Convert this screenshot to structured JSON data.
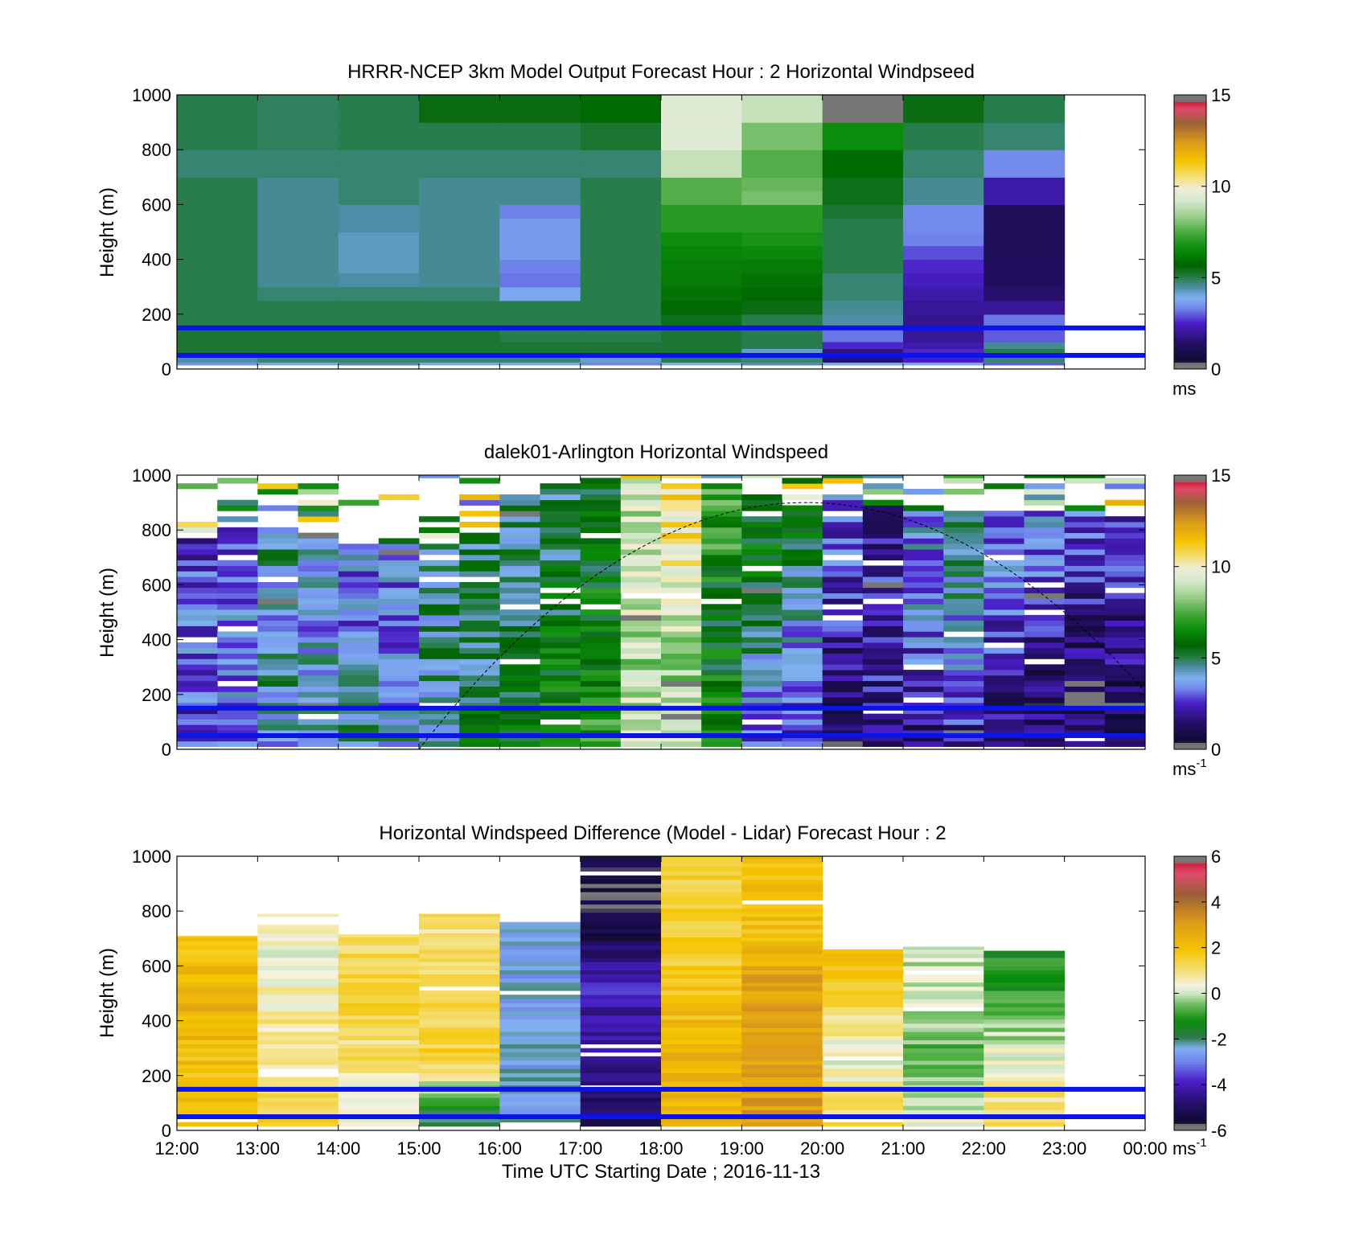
{
  "x_axis": {
    "ticks": [
      "12:00",
      "13:00",
      "14:00",
      "15:00",
      "16:00",
      "17:00",
      "18:00",
      "19:00",
      "20:00",
      "21:00",
      "22:00",
      "23:00",
      "00:00"
    ],
    "label": "Time UTC  Starting Date ; 2016-11-13"
  },
  "colormaps": {
    "windspeed": [
      [
        0,
        "#777777"
      ],
      [
        0.02,
        "#777777"
      ],
      [
        0.03,
        "#0f0a30"
      ],
      [
        0.1,
        "#260f6b"
      ],
      [
        0.17,
        "#4a1fc8"
      ],
      [
        0.22,
        "#6e83ea"
      ],
      [
        0.26,
        "#7fb0f0"
      ],
      [
        0.3,
        "#4e8da6"
      ],
      [
        0.34,
        "#1f7a3a"
      ],
      [
        0.38,
        "#006400"
      ],
      [
        0.44,
        "#0b8d0b"
      ],
      [
        0.5,
        "#4aaa40"
      ],
      [
        0.56,
        "#9fd08f"
      ],
      [
        0.62,
        "#d8ead0"
      ],
      [
        0.66,
        "#f0ecd8"
      ],
      [
        0.7,
        "#f4e07a"
      ],
      [
        0.76,
        "#f5c400"
      ],
      [
        0.83,
        "#d99a1a"
      ],
      [
        0.9,
        "#9b6038"
      ],
      [
        0.95,
        "#e04a6a"
      ],
      [
        0.975,
        "#cc1f3a"
      ],
      [
        0.98,
        "#777777"
      ],
      [
        1,
        "#777777"
      ]
    ],
    "difference": [
      [
        0,
        "#777777"
      ],
      [
        0.02,
        "#777777"
      ],
      [
        0.03,
        "#0f0a30"
      ],
      [
        0.1,
        "#260f6b"
      ],
      [
        0.18,
        "#4a1fc8"
      ],
      [
        0.25,
        "#6e83ea"
      ],
      [
        0.3,
        "#7fb0f0"
      ],
      [
        0.34,
        "#2e7a4a"
      ],
      [
        0.4,
        "#0b8d0b"
      ],
      [
        0.46,
        "#6ebc5e"
      ],
      [
        0.5,
        "#cfe6c4"
      ],
      [
        0.53,
        "#f5f2e0"
      ],
      [
        0.58,
        "#f4e07a"
      ],
      [
        0.66,
        "#f5c400"
      ],
      [
        0.76,
        "#dd9a1a"
      ],
      [
        0.86,
        "#9b6038"
      ],
      [
        0.94,
        "#e04a6a"
      ],
      [
        0.975,
        "#cc1f3a"
      ],
      [
        0.98,
        "#777777"
      ],
      [
        1,
        "#777777"
      ]
    ]
  },
  "chart_data": [
    {
      "type": "heatmap",
      "title": "HRRR-NCEP 3km Model Output   Forecast Hour : 2 Horizontal Windpseed",
      "ylabel": "Height (m)",
      "y_ticks": [
        "0",
        "200",
        "400",
        "600",
        "800",
        "1000"
      ],
      "ylim": [
        0,
        1000
      ],
      "xlim": [
        0,
        12
      ],
      "colorbar": {
        "ticks": [
          "0",
          "5",
          "10",
          "15"
        ],
        "unit": "ms",
        "unit_sup": "",
        "range": [
          0,
          15
        ],
        "colormap": "windspeed"
      },
      "reference_lines_m": [
        150,
        50
      ],
      "times": [
        "12:00",
        "13:00",
        "14:00",
        "15:00",
        "16:00",
        "17:00",
        "18:00",
        "19:00",
        "20:00",
        "21:00",
        "22:00"
      ],
      "levels_m": [
        25,
        50,
        75,
        100,
        150,
        200,
        250,
        300,
        350,
        400,
        450,
        500,
        550,
        600,
        650,
        700,
        750,
        800,
        850,
        900,
        950,
        1000
      ],
      "values": [
        [
          3.5,
          4.0,
          4.5,
          4.0,
          4.0,
          3.3,
          3.8,
          4.5,
          4.0,
          4.0,
          3.0
        ],
        [
          4.5,
          4.8,
          4.8,
          4.8,
          4.8,
          4.2,
          5.0,
          4.8,
          1.6,
          2.5,
          4.8
        ],
        [
          5.2,
          5.2,
          5.2,
          5.2,
          5.2,
          5.2,
          5.2,
          4.2,
          1.8,
          2.6,
          5.0
        ],
        [
          5.2,
          5.2,
          5.2,
          5.2,
          5.2,
          5.2,
          5.2,
          5.0,
          2.6,
          2.2,
          4.6
        ],
        [
          5.2,
          5.2,
          5.2,
          5.2,
          5.0,
          5.0,
          5.2,
          5.0,
          3.2,
          2.0,
          3.0
        ],
        [
          5.0,
          5.0,
          5.0,
          5.0,
          5.0,
          5.0,
          5.4,
          5.0,
          4.5,
          1.9,
          3.2
        ],
        [
          5.0,
          5.0,
          5.0,
          5.0,
          5.0,
          5.0,
          5.8,
          5.5,
          4.6,
          2.0,
          2.0
        ],
        [
          5.0,
          4.8,
          4.8,
          4.8,
          3.8,
          5.0,
          6.0,
          5.8,
          4.8,
          2.2,
          1.5
        ],
        [
          5.0,
          4.6,
          4.5,
          4.6,
          3.2,
          5.0,
          6.2,
          6.0,
          4.8,
          2.4,
          1.3
        ],
        [
          5.0,
          4.6,
          4.3,
          4.6,
          3.3,
          5.0,
          6.3,
          6.2,
          5.0,
          2.6,
          1.3
        ],
        [
          5.0,
          4.6,
          4.3,
          4.6,
          3.6,
          5.0,
          6.4,
          6.5,
          5.0,
          2.9,
          1.2
        ],
        [
          5.0,
          4.6,
          4.3,
          4.6,
          3.6,
          5.0,
          6.6,
          6.8,
          5.0,
          3.3,
          1.2
        ],
        [
          5.0,
          4.6,
          4.5,
          4.6,
          3.6,
          5.0,
          7.0,
          7.0,
          5.0,
          3.4,
          1.2
        ],
        [
          5.0,
          4.6,
          4.5,
          4.6,
          3.3,
          5.0,
          7.0,
          7.0,
          5.2,
          3.4,
          1.2
        ],
        [
          5.0,
          4.6,
          4.8,
          4.6,
          4.6,
          5.0,
          7.6,
          8.0,
          5.4,
          4.6,
          2.2
        ],
        [
          5.0,
          4.6,
          4.8,
          4.6,
          4.6,
          5.0,
          7.6,
          7.8,
          5.4,
          4.6,
          2.2
        ],
        [
          4.8,
          4.8,
          4.8,
          4.8,
          4.8,
          4.8,
          9.0,
          7.6,
          5.8,
          4.8,
          3.4
        ],
        [
          4.8,
          4.8,
          4.8,
          4.8,
          4.8,
          4.8,
          9.0,
          7.6,
          5.8,
          4.8,
          3.4
        ],
        [
          5.0,
          4.9,
          5.0,
          5.0,
          5.0,
          5.2,
          9.5,
          8.0,
          6.6,
          5.0,
          4.8
        ],
        [
          5.0,
          4.9,
          5.0,
          5.0,
          5.0,
          5.2,
          9.5,
          8.0,
          6.6,
          5.0,
          4.8
        ],
        [
          5.0,
          4.9,
          5.0,
          5.5,
          5.5,
          5.8,
          9.5,
          9.0,
          0.0,
          5.5,
          5.0
        ],
        [
          5.0,
          4.9,
          5.0,
          5.5,
          5.5,
          5.8,
          9.5,
          9.0,
          0.0,
          5.5,
          5.0
        ]
      ]
    },
    {
      "type": "heatmap",
      "title": "dalek01-Arlington  Horizontal Windspeed",
      "ylabel": "Height (m)",
      "y_ticks": [
        "0",
        "200",
        "400",
        "600",
        "800",
        "1000"
      ],
      "ylim": [
        0,
        1000
      ],
      "xlim": [
        0,
        12
      ],
      "colorbar": {
        "ticks": [
          "0",
          "5",
          "10",
          "15"
        ],
        "unit": "ms",
        "unit_sup": "-1",
        "range": [
          0,
          15
        ],
        "colormap": "windspeed"
      },
      "reference_lines_m": [
        150,
        50
      ],
      "annotation_curve_peak": {
        "x_hours": [
          3.0,
          7.8,
          11.9
        ],
        "y_m": [
          0,
          900,
          160
        ]
      },
      "time_hours": [
        0.25,
        0.75,
        1.25,
        1.75,
        2.25,
        2.75,
        3.25,
        3.75,
        4.25,
        4.75,
        5.25,
        5.75,
        6.25,
        6.75,
        7.25,
        7.75,
        8.25,
        8.75,
        9.25,
        9.75,
        10.25,
        10.75,
        11.25,
        11.75
      ],
      "top_of_data_m": [
        750,
        790,
        800,
        780,
        740,
        740,
        730,
        780,
        920,
        960,
        980,
        980,
        960,
        950,
        920,
        900,
        890,
        880,
        860,
        860,
        850,
        860,
        860,
        840
      ],
      "profile_speed": [
        [
          2.5,
          3.0,
          3.2,
          2.0
        ],
        [
          3.0,
          3.5,
          3.5,
          3.0
        ],
        [
          4.0,
          4.5,
          4.0,
          4.5
        ],
        [
          4.5,
          4.2,
          3.5,
          4.0
        ],
        [
          4.5,
          3.8,
          3.2,
          3.5
        ],
        [
          4.2,
          3.5,
          3.0,
          3.5
        ],
        [
          4.5,
          4.5,
          4.5,
          4.5
        ],
        [
          5.5,
          5.0,
          5.0,
          5.0
        ],
        [
          6.0,
          5.5,
          5.0,
          4.8
        ],
        [
          7.0,
          6.0,
          5.5,
          5.0
        ],
        [
          7.5,
          6.5,
          6.0,
          5.8
        ],
        [
          9.5,
          8.5,
          9.0,
          9.0
        ],
        [
          9.0,
          8.5,
          9.0,
          10.5
        ],
        [
          6.5,
          6.0,
          5.5,
          7.0
        ],
        [
          3.0,
          4.0,
          4.8,
          6.0
        ],
        [
          2.5,
          3.0,
          4.0,
          5.5
        ],
        [
          1.0,
          1.5,
          2.5,
          3.0
        ],
        [
          1.5,
          2.0,
          2.5,
          2.0
        ],
        [
          1.5,
          2.5,
          3.5,
          3.5
        ],
        [
          2.0,
          3.0,
          4.0,
          4.5
        ],
        [
          1.2,
          2.0,
          3.0,
          3.5
        ],
        [
          1.2,
          1.5,
          2.5,
          3.5
        ],
        [
          1.0,
          1.2,
          1.8,
          3.0
        ],
        [
          1.0,
          1.5,
          1.8,
          2.5
        ]
      ]
    },
    {
      "type": "heatmap",
      "title": "Horizontal Windspeed Difference (Model - Lidar) Forecast Hour : 2",
      "xlabel": "Time UTC  Starting Date ; 2016-11-13",
      "ylabel": "Height (m)",
      "y_ticks": [
        "0",
        "200",
        "400",
        "600",
        "800",
        "1000"
      ],
      "ylim": [
        0,
        1000
      ],
      "xlim": [
        0,
        12
      ],
      "colorbar": {
        "ticks": [
          "-6",
          "-4",
          "-2",
          "0",
          "2",
          "4",
          "6"
        ],
        "unit": "ms",
        "unit_sup": "-1",
        "range": [
          -6,
          6
        ],
        "colormap": "difference"
      },
      "reference_lines_m": [
        150,
        50
      ],
      "times": [
        "12:00",
        "13:00",
        "14:00",
        "15:00",
        "16:00",
        "17:00",
        "18:00",
        "19:00",
        "20:00",
        "21:00",
        "22:00"
      ],
      "top_of_data_m": [
        710,
        790,
        715,
        790,
        760,
        1000,
        1000,
        1000,
        660,
        670,
        655
      ],
      "profile_diff": [
        [
          2.0,
          2.0,
          2.5,
          1.5
        ],
        [
          1.5,
          1.0,
          0.5,
          0.3
        ],
        [
          0.0,
          1.0,
          1.5,
          1.0
        ],
        [
          -2.5,
          1.5,
          1.2,
          1.0
        ],
        [
          -2.5,
          -2.5,
          -2.5,
          -2.5
        ],
        [
          -5.0,
          -4.5,
          -4.0,
          -5.5
        ],
        [
          2.0,
          2.5,
          1.8,
          1.5
        ],
        [
          3.0,
          3.0,
          3.0,
          2.0
        ],
        [
          1.5,
          0.2,
          1.5,
          2.0
        ],
        [
          0.5,
          -0.8,
          0.0,
          0.2
        ],
        [
          1.5,
          0.3,
          -1.0,
          -1.5
        ]
      ]
    }
  ]
}
